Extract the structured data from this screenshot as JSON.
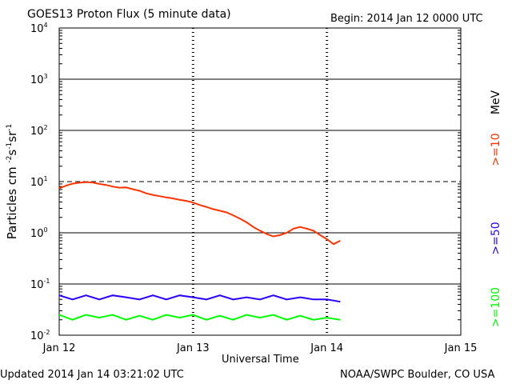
{
  "header": {
    "title": "GOES13 Proton Flux (5 minute data)",
    "begin": "Begin: 2014 Jan 12 0000 UTC"
  },
  "footer": {
    "updated": "Updated 2014 Jan 14 03:21:02 UTC",
    "credit": "NOAA/SWPC Boulder, CO USA"
  },
  "colors": {
    "ge10": "#ff3300",
    "ge50": "#2a00ff",
    "ge100": "#00ff00",
    "frame": "#000000"
  },
  "chart_data": {
    "type": "line",
    "title": "GOES13 Proton Flux (5 minute data)",
    "xlabel": "Universal Time",
    "ylabel_base": "Particles cm",
    "ylabel_exps": [
      "-2",
      "-1",
      "-1"
    ],
    "ylabel_units": [
      "s",
      "sr"
    ],
    "yscale": "log",
    "ylim_exp": [
      -2,
      4
    ],
    "y_ticks": [
      {
        "base": "10",
        "exp": "-2"
      },
      {
        "base": "10",
        "exp": "-1"
      },
      {
        "base": "10",
        "exp": "0"
      },
      {
        "base": "10",
        "exp": "1"
      },
      {
        "base": "10",
        "exp": "2"
      },
      {
        "base": "10",
        "exp": "3"
      },
      {
        "base": "10",
        "exp": "4"
      }
    ],
    "xlim_days": [
      0,
      3
    ],
    "x_ticks": [
      {
        "label": "Jan 12",
        "day": 0
      },
      {
        "label": "Jan 13",
        "day": 1
      },
      {
        "label": "Jan 14",
        "day": 2
      },
      {
        "label": "Jan 15",
        "day": 3
      }
    ],
    "threshold_line": 10,
    "series": [
      {
        "name": ">=10",
        "color": "#ff3300",
        "points": [
          [
            0.0,
            7.4
          ],
          [
            0.05,
            8.3
          ],
          [
            0.1,
            9.1
          ],
          [
            0.15,
            9.5
          ],
          [
            0.2,
            9.8
          ],
          [
            0.25,
            9.6
          ],
          [
            0.3,
            9.0
          ],
          [
            0.35,
            8.6
          ],
          [
            0.4,
            8.0
          ],
          [
            0.45,
            7.6
          ],
          [
            0.5,
            7.7
          ],
          [
            0.55,
            7.1
          ],
          [
            0.6,
            6.6
          ],
          [
            0.65,
            5.9
          ],
          [
            0.7,
            5.5
          ],
          [
            0.75,
            5.2
          ],
          [
            0.8,
            4.9
          ],
          [
            0.85,
            4.7
          ],
          [
            0.9,
            4.4
          ],
          [
            0.95,
            4.2
          ],
          [
            1.0,
            3.9
          ],
          [
            1.05,
            3.5
          ],
          [
            1.1,
            3.2
          ],
          [
            1.15,
            2.9
          ],
          [
            1.2,
            2.7
          ],
          [
            1.25,
            2.5
          ],
          [
            1.3,
            2.2
          ],
          [
            1.35,
            1.9
          ],
          [
            1.4,
            1.6
          ],
          [
            1.45,
            1.3
          ],
          [
            1.5,
            1.1
          ],
          [
            1.55,
            0.95
          ],
          [
            1.6,
            0.85
          ],
          [
            1.65,
            0.9
          ],
          [
            1.7,
            1.0
          ],
          [
            1.75,
            1.2
          ],
          [
            1.8,
            1.3
          ],
          [
            1.85,
            1.2
          ],
          [
            1.9,
            1.1
          ],
          [
            1.95,
            0.9
          ],
          [
            2.0,
            0.75
          ],
          [
            2.05,
            0.6
          ],
          [
            2.1,
            0.7
          ]
        ]
      },
      {
        "name": ">=50",
        "color": "#2a00ff",
        "points": [
          [
            0.0,
            0.06
          ],
          [
            0.1,
            0.05
          ],
          [
            0.2,
            0.06
          ],
          [
            0.3,
            0.05
          ],
          [
            0.4,
            0.06
          ],
          [
            0.5,
            0.055
          ],
          [
            0.6,
            0.05
          ],
          [
            0.7,
            0.06
          ],
          [
            0.8,
            0.05
          ],
          [
            0.9,
            0.06
          ],
          [
            1.0,
            0.055
          ],
          [
            1.1,
            0.05
          ],
          [
            1.2,
            0.06
          ],
          [
            1.3,
            0.05
          ],
          [
            1.4,
            0.055
          ],
          [
            1.5,
            0.05
          ],
          [
            1.6,
            0.06
          ],
          [
            1.7,
            0.05
          ],
          [
            1.8,
            0.055
          ],
          [
            1.9,
            0.05
          ],
          [
            2.0,
            0.05
          ],
          [
            2.1,
            0.045
          ]
        ]
      },
      {
        "name": ">=100",
        "color": "#00ff00",
        "points": [
          [
            0.0,
            0.025
          ],
          [
            0.1,
            0.02
          ],
          [
            0.2,
            0.025
          ],
          [
            0.3,
            0.022
          ],
          [
            0.4,
            0.025
          ],
          [
            0.5,
            0.02
          ],
          [
            0.6,
            0.024
          ],
          [
            0.7,
            0.02
          ],
          [
            0.8,
            0.025
          ],
          [
            0.9,
            0.022
          ],
          [
            1.0,
            0.025
          ],
          [
            1.1,
            0.02
          ],
          [
            1.2,
            0.024
          ],
          [
            1.3,
            0.02
          ],
          [
            1.4,
            0.025
          ],
          [
            1.5,
            0.022
          ],
          [
            1.6,
            0.025
          ],
          [
            1.7,
            0.02
          ],
          [
            1.8,
            0.024
          ],
          [
            1.9,
            0.02
          ],
          [
            2.0,
            0.022
          ],
          [
            2.1,
            0.02
          ]
        ]
      }
    ],
    "legend": {
      "position": "right",
      "items": [
        {
          "label": ">=10",
          "color": "#ff3300"
        },
        {
          "label": ">=50",
          "color": "#2a00ff"
        },
        {
          "label": ">=100",
          "color": "#00ff00"
        }
      ],
      "unit": "MeV"
    }
  }
}
